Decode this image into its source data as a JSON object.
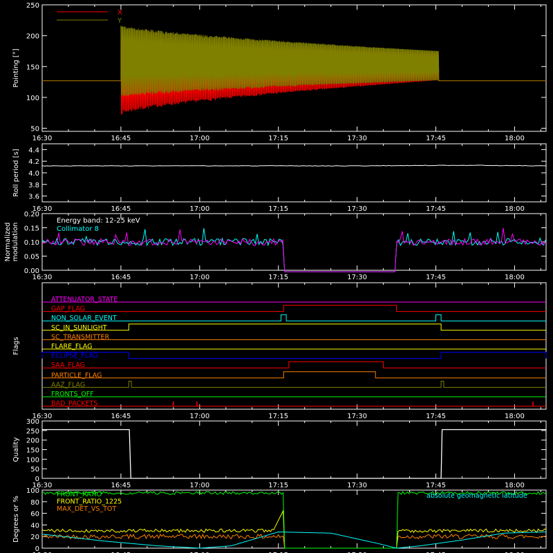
{
  "chart_data": [
    {
      "type": "line",
      "ylabel": "Pointing [°]",
      "xaxis_ticks": [
        "16:30",
        "16:45",
        "17:00",
        "17:15",
        "17:30",
        "17:45",
        "18:00"
      ],
      "xlim_minutes": [
        0,
        96
      ],
      "ylim": [
        45,
        250
      ],
      "yticks": [
        "250",
        "200",
        "150",
        "100",
        "50"
      ],
      "legend_position": "top-left",
      "series": [
        {
          "name": "X",
          "color": "#ff0000",
          "baseline": 127,
          "envelope_start_minute": 15,
          "envelope_end_minute": 75.5,
          "start_range": [
            75,
            190
          ],
          "end_range": [
            128,
            172
          ]
        },
        {
          "name": "Y",
          "color": "#808000",
          "baseline": 127,
          "envelope_start_minute": 15,
          "envelope_end_minute": 75.5,
          "start_range": [
            102,
            215
          ],
          "end_range": [
            128,
            175
          ]
        }
      ]
    },
    {
      "type": "line",
      "ylabel": "Roll period [s]",
      "ylim": [
        3.5,
        4.5
      ],
      "yticks": [
        "4.4",
        "4.2",
        "4.0",
        "3.8",
        "3.6"
      ],
      "series": [
        {
          "name": "",
          "color": "#ffffff",
          "x": [
            0,
            20,
            40,
            60,
            80,
            96
          ],
          "y": [
            4.12,
            4.12,
            4.12,
            4.12,
            4.13,
            4.12
          ]
        }
      ]
    },
    {
      "type": "line",
      "ylabel": "Normalized modulation",
      "ylim": [
        0.0,
        0.2
      ],
      "yticks": [
        "0.20",
        "0.15",
        "0.10",
        "0.05",
        "0.00"
      ],
      "annotation": "Energy band: 12-25 keV",
      "gaps": [
        [
          46,
          67.5
        ]
      ],
      "series": [
        {
          "name": "Collimator 8",
          "color": "#00ffff",
          "typical": 0.1
        },
        {
          "name": "",
          "color": "#ff00ff",
          "typical": 0.1
        }
      ]
    },
    {
      "type": "line",
      "ylabel": "Flags",
      "flags": [
        {
          "name": "ATTENUATOR_STATE",
          "color": "#ff00ff",
          "steps": []
        },
        {
          "name": "GAP_FLAG",
          "color": "#ff0000",
          "steps": [
            [
              46,
              67.5
            ]
          ]
        },
        {
          "name": "NON_SOLAR_EVENT",
          "color": "#00ffff",
          "steps": [
            [
              45.5,
              46.5
            ],
            [
              75,
              76
            ]
          ]
        },
        {
          "name": "SC_IN_SUNLIGHT",
          "color": "#ffff00",
          "steps": [
            [
              16.5,
              76
            ]
          ]
        },
        {
          "name": "SC_TRANSMITTER",
          "color": "#ff8000",
          "steps": []
        },
        {
          "name": "FLARE_FLAG",
          "color": "#ffff00",
          "steps": []
        },
        {
          "name": "ECLIPSE_FLAG",
          "color": "#0000ff",
          "steps": [
            [
              0,
              16.5
            ],
            [
              76,
              96
            ]
          ]
        },
        {
          "name": "SAA_FLAG",
          "color": "#ff0000",
          "steps": [
            [
              47,
              65
            ]
          ]
        },
        {
          "name": "PARTICLE_FLAG",
          "color": "#ff8000",
          "steps": [
            [
              46,
              63.5
            ]
          ]
        },
        {
          "name": "AAZ_FLAG",
          "color": "#808000",
          "steps": [
            [
              16.5,
              17
            ],
            [
              76,
              76.5
            ]
          ]
        },
        {
          "name": "FRONTS_OFF",
          "color": "#00ff00",
          "steps": []
        },
        {
          "name": "BAD_PACKETS",
          "color": "#ff0000",
          "spikes": [
            25,
            29.5,
            93.5
          ]
        }
      ]
    },
    {
      "type": "line",
      "ylabel": "Quality",
      "ylim": [
        0,
        300
      ],
      "yticks": [
        "300",
        "250",
        "200",
        "150",
        "100",
        "50",
        "0"
      ],
      "series": [
        {
          "name": "",
          "color": "#ffffff",
          "x": [
            0,
            16.6,
            16.9,
            76,
            76.2,
            96
          ],
          "y": [
            255,
            255,
            0,
            0,
            255,
            255
          ]
        }
      ]
    },
    {
      "type": "line",
      "ylabel": "Degrees or %",
      "ylim": [
        0,
        100
      ],
      "yticks": [
        "100",
        "80",
        "60",
        "40",
        "20",
        "0"
      ],
      "legend_position": "top-left",
      "annotation": "absolute geomagnetic latitude",
      "gaps": [
        [
          46,
          67.5
        ]
      ],
      "series": [
        {
          "name": "FRONT_RATIO",
          "color": "#00ff00",
          "typical": 95
        },
        {
          "name": "FRONT_RATIO_1225",
          "color": "#ffff00",
          "typical": 30
        },
        {
          "name": "MAX_DET_VS_TOT",
          "color": "#ff8000",
          "typical": 20
        },
        {
          "name": "absolute geomagnetic latitude",
          "color": "#00ffff",
          "x": [
            0,
            12,
            22,
            30,
            36,
            45,
            55,
            64,
            67.5,
            72,
            80,
            88,
            96
          ],
          "y": [
            24,
            12,
            4,
            0,
            4,
            28,
            26,
            8,
            0,
            4,
            14,
            26,
            28
          ]
        }
      ]
    }
  ]
}
